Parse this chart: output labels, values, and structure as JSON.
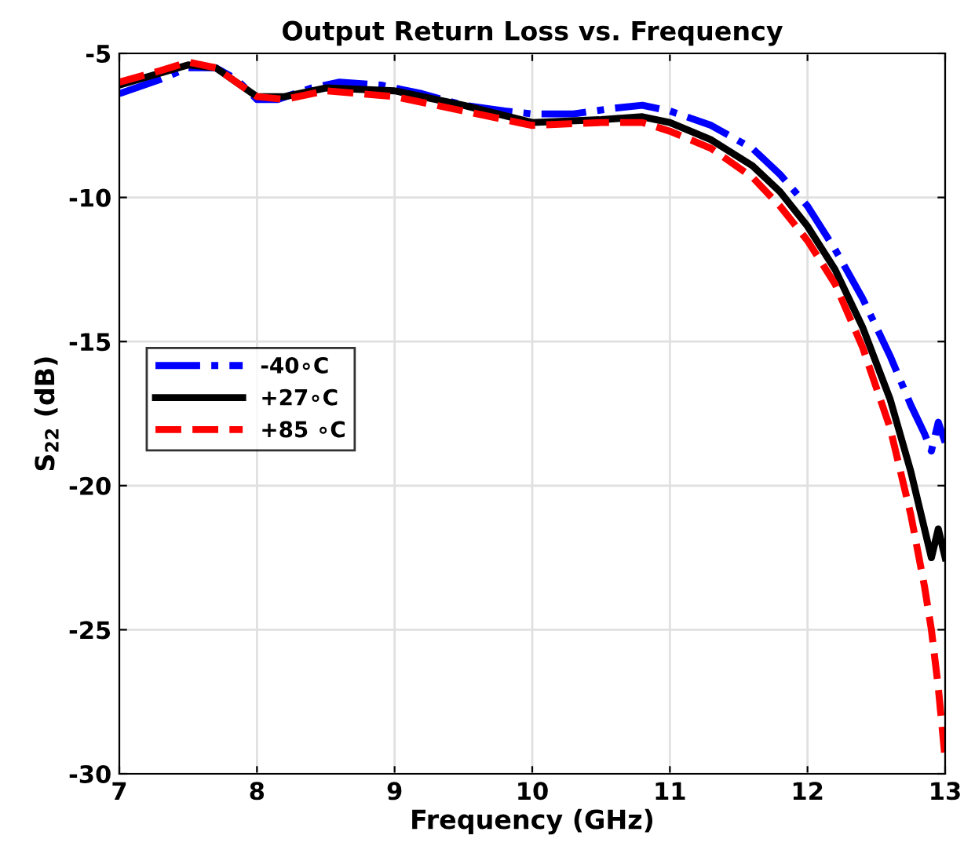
{
  "chart_data": {
    "type": "line",
    "title": "Output Return Loss vs. Frequency",
    "xlabel": "Frequency (GHz)",
    "ylabel": "S$_{22}$ (dB)",
    "xlim": [
      7,
      13
    ],
    "xticks": [
      7,
      8,
      9,
      10,
      11,
      12,
      13
    ],
    "ylim": [
      -30,
      -5
    ],
    "yticks": [
      -30,
      -25,
      -20,
      -15,
      -10,
      -5
    ],
    "grid": true,
    "legend": "left",
    "marker": "none",
    "series": [
      {
        "name": "-40∘C",
        "color": "#0000ff",
        "line_style": "dashdot",
        "x": [
          7.0,
          7.3,
          7.5,
          7.7,
          7.85,
          8.0,
          8.15,
          8.4,
          8.6,
          8.9,
          9.2,
          9.5,
          9.8,
          10.0,
          10.3,
          10.6,
          10.8,
          11.0,
          11.3,
          11.6,
          11.8,
          12.0,
          12.2,
          12.4,
          12.6,
          12.75,
          12.85,
          12.9,
          12.95,
          13.0
        ],
        "values": [
          -6.4,
          -5.9,
          -5.5,
          -5.5,
          -5.9,
          -6.6,
          -6.6,
          -6.2,
          -6.0,
          -6.1,
          -6.4,
          -6.8,
          -7.0,
          -7.1,
          -7.1,
          -6.9,
          -6.8,
          -7.0,
          -7.5,
          -8.3,
          -9.2,
          -10.3,
          -11.8,
          -13.5,
          -15.5,
          -17.2,
          -18.2,
          -18.8,
          -17.8,
          -18.5
        ]
      },
      {
        "name": "+27∘C",
        "color": "#000000",
        "line_style": "solid",
        "x": [
          7.0,
          7.5,
          7.7,
          8.0,
          8.2,
          8.5,
          9.0,
          9.5,
          10.0,
          10.5,
          10.8,
          11.0,
          11.3,
          11.6,
          11.8,
          12.0,
          12.2,
          12.4,
          12.6,
          12.75,
          12.85,
          12.9,
          12.95,
          13.0
        ],
        "values": [
          -6.1,
          -5.4,
          -5.5,
          -6.5,
          -6.5,
          -6.2,
          -6.3,
          -6.8,
          -7.4,
          -7.3,
          -7.2,
          -7.4,
          -8.0,
          -8.9,
          -9.8,
          -11.0,
          -12.5,
          -14.5,
          -17.0,
          -19.5,
          -21.5,
          -22.5,
          -21.5,
          -22.5
        ]
      },
      {
        "name": "+85 ∘C",
        "color": "#ff0000",
        "line_style": "dashed",
        "x": [
          7.0,
          7.3,
          7.5,
          7.7,
          8.0,
          8.2,
          8.5,
          9.0,
          9.5,
          10.0,
          10.5,
          10.8,
          11.0,
          11.3,
          11.6,
          11.8,
          12.0,
          12.2,
          12.4,
          12.6,
          12.75,
          12.85,
          12.9,
          12.95,
          13.0
        ],
        "values": [
          -6.0,
          -5.6,
          -5.3,
          -5.5,
          -6.5,
          -6.6,
          -6.3,
          -6.5,
          -7.0,
          -7.5,
          -7.4,
          -7.4,
          -7.7,
          -8.3,
          -9.3,
          -10.3,
          -11.5,
          -13.0,
          -15.2,
          -18.0,
          -21.0,
          -23.5,
          -25.0,
          -27.0,
          -29.5
        ]
      }
    ]
  }
}
